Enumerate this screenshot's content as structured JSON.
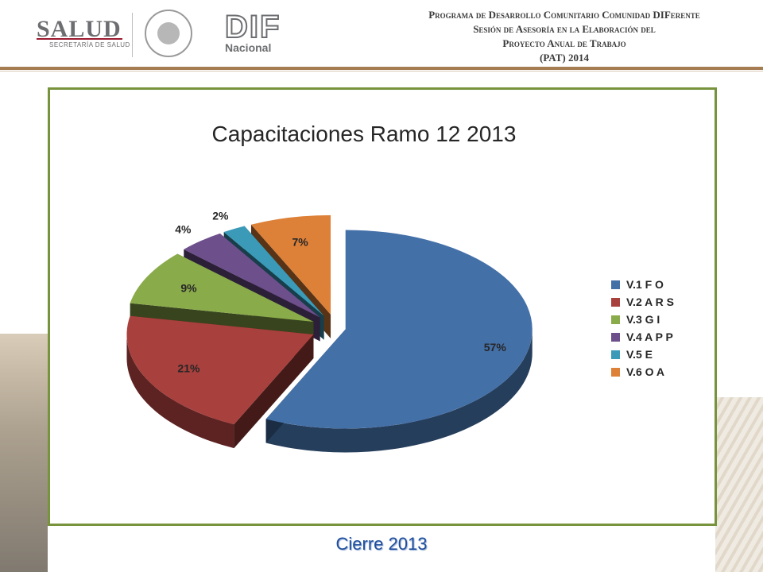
{
  "header": {
    "salud": "SALUD",
    "salud_sub": "SECRETARÍA DE SALUD",
    "dif": "DIF",
    "nacional": "Nacional",
    "title_lines": [
      "Programa de Desarrollo Comunitario Comunidad DIFerente",
      "Sesión de Asesoría en la Elaboración del",
      "Proyecto Anual de Trabajo",
      "(PAT) 2014"
    ]
  },
  "chart_data": {
    "type": "pie",
    "title": "Capacitaciones Ramo 12 2013",
    "categories": [
      "V.1 F O",
      "V.2 A R  S",
      "V.3 G  I",
      "V.4 A  P P",
      "V.5 E",
      "V.6 O A"
    ],
    "values": [
      57,
      21,
      9,
      4,
      2,
      7
    ],
    "labels": [
      "57%",
      "21%",
      "9%",
      "4%",
      "2%",
      "7%"
    ],
    "colors": [
      "#4470a8",
      "#a8403d",
      "#8aab4a",
      "#6d4f8c",
      "#3a9ab8",
      "#dd8038"
    ],
    "legend_position": "right"
  },
  "caption": "Cierre 2013"
}
